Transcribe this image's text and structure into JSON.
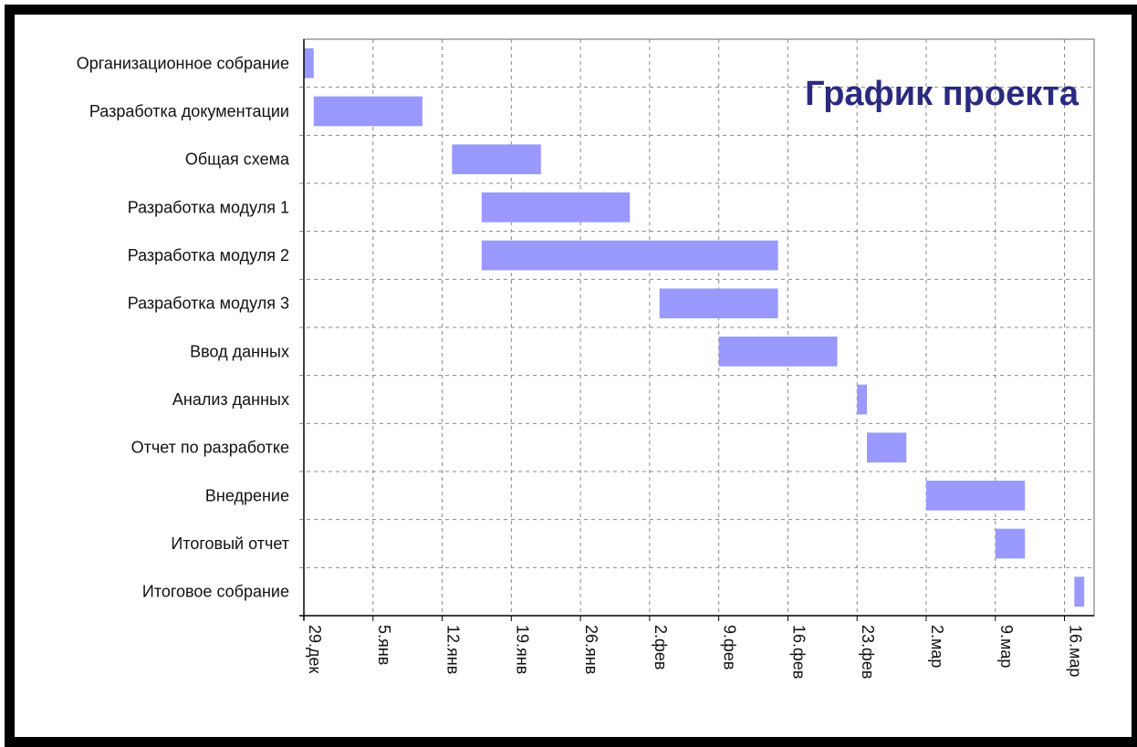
{
  "chart_data": {
    "type": "bar",
    "orientation": "horizontal",
    "subtype": "gantt",
    "title": "График проекта",
    "title_placement": "top-right inside plot",
    "grid": true,
    "bar_color": "#9999ff",
    "title_color": "#2a2a80",
    "x_axis": {
      "type": "date",
      "start": "2008-12-29",
      "end": "2009-03-19",
      "ticks": [
        "2008-12-29",
        "2009-01-05",
        "2009-01-12",
        "2009-01-19",
        "2009-01-26",
        "2009-02-02",
        "2009-02-09",
        "2009-02-16",
        "2009-02-23",
        "2009-03-02",
        "2009-03-09",
        "2009-03-16"
      ],
      "tick_labels": [
        "29.дек",
        "5.янв",
        "12.янв",
        "19.янв",
        "26.янв",
        "2.фев",
        "9.фев",
        "16.фев",
        "23.фев",
        "2.мар",
        "9.мар",
        "16.мар"
      ]
    },
    "tasks": [
      {
        "name": "Организационное собрание",
        "start": "2008-12-29",
        "end": "2008-12-30"
      },
      {
        "name": "Разработка документации",
        "start": "2008-12-30",
        "end": "2009-01-10"
      },
      {
        "name": "Общая схема",
        "start": "2009-01-13",
        "end": "2009-01-22"
      },
      {
        "name": "Разработка модуля 1",
        "start": "2009-01-16",
        "end": "2009-01-31"
      },
      {
        "name": "Разработка модуля 2",
        "start": "2009-01-16",
        "end": "2009-02-15"
      },
      {
        "name": "Разработка модуля 3",
        "start": "2009-02-03",
        "end": "2009-02-15"
      },
      {
        "name": "Ввод данных",
        "start": "2009-02-09",
        "end": "2009-02-21"
      },
      {
        "name": "Анализ данных",
        "start": "2009-02-23",
        "end": "2009-02-24"
      },
      {
        "name": "Отчет по разработке",
        "start": "2009-02-24",
        "end": "2009-02-28"
      },
      {
        "name": "Внедрение",
        "start": "2009-03-02",
        "end": "2009-03-12"
      },
      {
        "name": "Итоговый отчет",
        "start": "2009-03-09",
        "end": "2009-03-12"
      },
      {
        "name": "Итоговое собрание",
        "start": "2009-03-17",
        "end": "2009-03-18"
      }
    ]
  }
}
